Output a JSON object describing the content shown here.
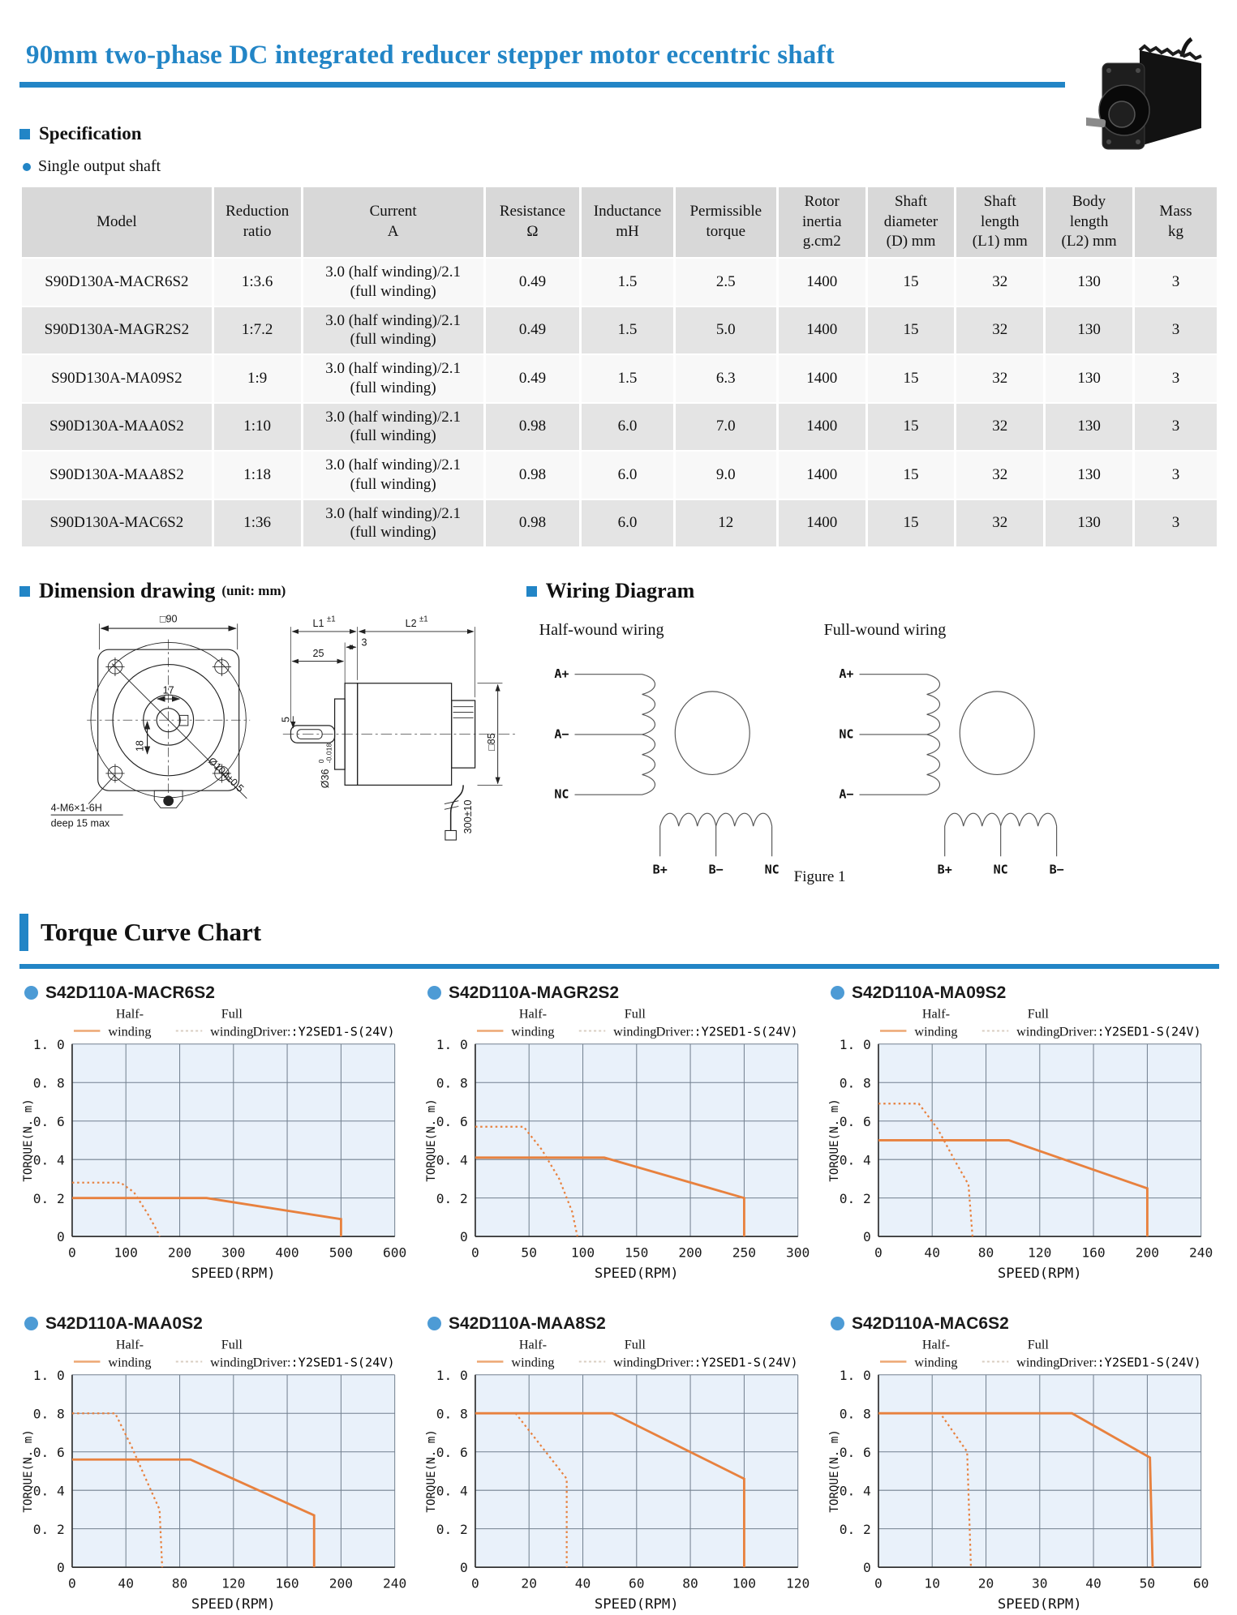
{
  "colors": {
    "accent_blue": "#2285c6",
    "curve_orange": "#e8813e",
    "chart_bg": "#e9f1fa",
    "grid": "#72808f"
  },
  "header": {
    "title": "90mm two-phase DC integrated reducer stepper motor eccentric shaft"
  },
  "spec": {
    "heading": "Specification",
    "subheading": "Single output shaft",
    "table": {
      "headers": [
        "Model",
        "Reduction\nratio",
        "Current\nA",
        "Resistance\nΩ",
        "Inductance\nmH",
        "Permissible\ntorque",
        "Rotor\ninertia\ng.cm2",
        "Shaft\ndiameter\n(D) mm",
        "Shaft\nlength\n(L1) mm",
        "Body\nlength\n(L2) mm",
        "Mass\nkg"
      ],
      "rows": [
        [
          "S90D130A-MACR6S2",
          "1:3.6",
          "3.0 (half winding)/2.1\n(full winding)",
          "0.49",
          "1.5",
          "2.5",
          "1400",
          "15",
          "32",
          "130",
          "3"
        ],
        [
          "S90D130A-MAGR2S2",
          "1:7.2",
          "3.0 (half winding)/2.1\n(full winding)",
          "0.49",
          "1.5",
          "5.0",
          "1400",
          "15",
          "32",
          "130",
          "3"
        ],
        [
          "S90D130A-MA09S2",
          "1:9",
          "3.0 (half winding)/2.1\n(full winding)",
          "0.49",
          "1.5",
          "6.3",
          "1400",
          "15",
          "32",
          "130",
          "3"
        ],
        [
          "S90D130A-MAA0S2",
          "1:10",
          "3.0 (half winding)/2.1\n(full winding)",
          "0.98",
          "6.0",
          "7.0",
          "1400",
          "15",
          "32",
          "130",
          "3"
        ],
        [
          "S90D130A-MAA8S2",
          "1:18",
          "3.0 (half winding)/2.1\n(full winding)",
          "0.98",
          "6.0",
          "9.0",
          "1400",
          "15",
          "32",
          "130",
          "3"
        ],
        [
          "S90D130A-MAC6S2",
          "1:36",
          "3.0 (half winding)/2.1\n(full winding)",
          "0.98",
          "6.0",
          "12",
          "1400",
          "15",
          "32",
          "130",
          "3"
        ]
      ]
    }
  },
  "dimension": {
    "heading": "Dimension drawing",
    "unit": "(unit: mm)",
    "labels": {
      "square90": "□90",
      "d17": "17",
      "d18": "18",
      "d104": "Ø104±0.5",
      "bolt_line1": "4-M6×1-6H",
      "bolt_line2": "deep 15 max",
      "l1": "L1",
      "l2": "L2",
      "pm1": "±1",
      "d3": "3",
      "d25": "25",
      "d36": "Ø36",
      "d36_tol_hi": "0",
      "d36_tol_lo": "-0.018",
      "d5": "5",
      "square85": "□85",
      "cable": "300±10"
    }
  },
  "wiring": {
    "heading": "Wiring Diagram",
    "figure": "Figure 1",
    "half": {
      "title": "Half-wound wiring",
      "left": [
        "A+",
        "A−",
        "NC"
      ],
      "bottom": [
        "B+",
        "B−",
        "NC"
      ]
    },
    "full": {
      "title": "Full-wound wiring",
      "left": [
        "A+",
        "NC",
        "A−"
      ],
      "bottom": [
        "B+",
        "NC",
        "B−"
      ]
    }
  },
  "torque_section": {
    "heading": "Torque Curve Chart"
  },
  "chart_data": [
    {
      "type": "line",
      "title": "S42D110A-MACR6S2",
      "legend_half": [
        "Half-",
        "winding"
      ],
      "legend_full": [
        "Full",
        "winding"
      ],
      "driver_label": "Driver:",
      "driver_value": ":Y2SED1-S(24V)",
      "xlabel": "SPEED(RPM)",
      "ylabel": "TORQUE(N. m)",
      "xlim": [
        0,
        600
      ],
      "ylim": [
        0,
        1.0
      ],
      "xticks": [
        0,
        100,
        200,
        300,
        400,
        500,
        600
      ],
      "xtick_labels": [
        "0",
        "100",
        "200",
        "300",
        "400",
        "500",
        "600"
      ],
      "yticks": [
        0,
        0.2,
        0.4,
        0.6,
        0.8,
        1.0
      ],
      "ytick_labels": [
        "0",
        "0. 2",
        "0. 4",
        "0. 6",
        "0. 8",
        "1. 0"
      ],
      "series": [
        {
          "name": "Half-winding",
          "style": "solid",
          "points": [
            [
              0,
              0.2
            ],
            [
              250,
              0.2
            ],
            [
              500,
              0.09
            ],
            [
              500,
              0
            ]
          ]
        },
        {
          "name": "Full winding",
          "style": "dotted",
          "points": [
            [
              0,
              0.28
            ],
            [
              90,
              0.28
            ],
            [
              115,
              0.23
            ],
            [
              140,
              0.12
            ],
            [
              158,
              0.03
            ],
            [
              163,
              0
            ]
          ]
        }
      ]
    },
    {
      "type": "line",
      "title": "S42D110A-MAGR2S2",
      "legend_half": [
        "Half-",
        "winding"
      ],
      "legend_full": [
        "Full",
        "winding"
      ],
      "driver_label": "Driver:",
      "driver_value": ":Y2SED1-S(24V)",
      "xlabel": "SPEED(RPM)",
      "ylabel": "TORQUE(N. m)",
      "xlim": [
        0,
        300
      ],
      "ylim": [
        0,
        1.0
      ],
      "xticks": [
        0,
        50,
        100,
        150,
        200,
        250,
        300
      ],
      "xtick_labels": [
        "0",
        "50",
        "100",
        "150",
        "200",
        "250",
        "300"
      ],
      "yticks": [
        0,
        0.2,
        0.4,
        0.6,
        0.8,
        1.0
      ],
      "ytick_labels": [
        "0",
        "0. 2",
        "0. 4",
        "0. 6",
        "0. 8",
        "1. 0"
      ],
      "series": [
        {
          "name": "Half-winding",
          "style": "solid",
          "points": [
            [
              0,
              0.41
            ],
            [
              120,
              0.41
            ],
            [
              250,
              0.2
            ],
            [
              250,
              0
            ]
          ]
        },
        {
          "name": "Full winding",
          "style": "dotted",
          "points": [
            [
              0,
              0.57
            ],
            [
              45,
              0.57
            ],
            [
              62,
              0.45
            ],
            [
              78,
              0.3
            ],
            [
              90,
              0.13
            ],
            [
              95,
              0
            ]
          ]
        }
      ]
    },
    {
      "type": "line",
      "title": "S42D110A-MA09S2",
      "legend_half": [
        "Half-",
        "winding"
      ],
      "legend_full": [
        "Full",
        "winding"
      ],
      "driver_label": "Driver:",
      "driver_value": ":Y2SED1-S(24V)",
      "xlabel": "SPEED(RPM)",
      "ylabel": "TORQUE(N. m)",
      "xlim": [
        0,
        240
      ],
      "ylim": [
        0,
        1.0
      ],
      "xticks": [
        0,
        40,
        80,
        120,
        160,
        200,
        240
      ],
      "xtick_labels": [
        "0",
        "40",
        "80",
        "120",
        "160",
        "200",
        "240"
      ],
      "yticks": [
        0,
        0.2,
        0.4,
        0.6,
        0.8,
        1.0
      ],
      "ytick_labels": [
        "0",
        "0. 2",
        "0. 4",
        "0. 6",
        "0. 8",
        "1. 0"
      ],
      "series": [
        {
          "name": "Half-winding",
          "style": "solid",
          "points": [
            [
              0,
              0.5
            ],
            [
              97,
              0.5
            ],
            [
              200,
              0.25
            ],
            [
              200,
              0
            ]
          ]
        },
        {
          "name": "Full winding",
          "style": "dotted",
          "points": [
            [
              0,
              0.69
            ],
            [
              30,
              0.69
            ],
            [
              44,
              0.56
            ],
            [
              58,
              0.38
            ],
            [
              67,
              0.27
            ],
            [
              70,
              0
            ]
          ]
        }
      ]
    },
    {
      "type": "line",
      "title": "S42D110A-MAA0S2",
      "legend_half": [
        "Half-",
        "winding"
      ],
      "legend_full": [
        "Full",
        "winding"
      ],
      "driver_label": "Driver:",
      "driver_value": ":Y2SED1-S(24V)",
      "xlabel": "SPEED(RPM)",
      "ylabel": "TORQUE(N. m)",
      "xlim": [
        0,
        240
      ],
      "ylim": [
        0,
        1.0
      ],
      "xticks": [
        0,
        40,
        80,
        120,
        160,
        200,
        240
      ],
      "xtick_labels": [
        "0",
        "40",
        "80",
        "120",
        "160",
        "200",
        "240"
      ],
      "yticks": [
        0,
        0.2,
        0.4,
        0.6,
        0.8,
        1.0
      ],
      "ytick_labels": [
        "0",
        "0. 2",
        "0. 4",
        "0. 6",
        "0. 8",
        "1. 0"
      ],
      "series": [
        {
          "name": "Half-winding",
          "style": "solid",
          "points": [
            [
              0,
              0.56
            ],
            [
              88,
              0.56
            ],
            [
              180,
              0.27
            ],
            [
              180,
              0
            ]
          ]
        },
        {
          "name": "Full winding",
          "style": "dotted",
          "points": [
            [
              0,
              0.8
            ],
            [
              32,
              0.8
            ],
            [
              44,
              0.63
            ],
            [
              56,
              0.44
            ],
            [
              65,
              0.3
            ],
            [
              67,
              0
            ]
          ]
        }
      ]
    },
    {
      "type": "line",
      "title": "S42D110A-MAA8S2",
      "legend_half": [
        "Half-",
        "winding"
      ],
      "legend_full": [
        "Full",
        "winding"
      ],
      "driver_label": "Driver:",
      "driver_value": ":Y2SED1-S(24V)",
      "xlabel": "SPEED(RPM)",
      "ylabel": "TORQUE(N. m)",
      "xlim": [
        0,
        120
      ],
      "ylim": [
        0,
        1.0
      ],
      "xticks": [
        0,
        20,
        40,
        60,
        80,
        100,
        120
      ],
      "xtick_labels": [
        "0",
        "20",
        "40",
        "60",
        "80",
        "100",
        "120"
      ],
      "yticks": [
        0,
        0.2,
        0.4,
        0.6,
        0.8,
        1.0
      ],
      "ytick_labels": [
        "0",
        "0. 2",
        "0. 4",
        "0. 6",
        "0. 8",
        "1. 0"
      ],
      "series": [
        {
          "name": "Half-winding",
          "style": "solid",
          "points": [
            [
              0,
              0.8
            ],
            [
              51,
              0.8
            ],
            [
              100,
              0.46
            ],
            [
              100,
              0
            ]
          ]
        },
        {
          "name": "Full winding",
          "style": "dotted",
          "points": [
            [
              0,
              0.8
            ],
            [
              15,
              0.8
            ],
            [
              34,
              0.46
            ],
            [
              34,
              0
            ]
          ]
        }
      ]
    },
    {
      "type": "line",
      "title": "S42D110A-MAC6S2",
      "legend_half": [
        "Half-",
        "winding"
      ],
      "legend_full": [
        "Full",
        "winding"
      ],
      "driver_label": "Driver:",
      "driver_value": ":Y2SED1-S(24V)",
      "xlabel": "SPEED(RPM)",
      "ylabel": "TORQUE(N. m)",
      "xlim": [
        0,
        60
      ],
      "ylim": [
        0,
        1.0
      ],
      "xticks": [
        0,
        10,
        20,
        30,
        40,
        50,
        60
      ],
      "xtick_labels": [
        "0",
        "10",
        "20",
        "30",
        "40",
        "50",
        "60"
      ],
      "yticks": [
        0,
        0.2,
        0.4,
        0.6,
        0.8,
        1.0
      ],
      "ytick_labels": [
        "0",
        "0. 2",
        "0. 4",
        "0. 6",
        "0. 8",
        "1. 0"
      ],
      "series": [
        {
          "name": "Half-winding",
          "style": "solid",
          "points": [
            [
              0,
              0.8
            ],
            [
              36,
              0.8
            ],
            [
              50.5,
              0.57
            ],
            [
              51,
              0
            ]
          ]
        },
        {
          "name": "Full winding",
          "style": "dotted",
          "points": [
            [
              0,
              0.8
            ],
            [
              11.5,
              0.8
            ],
            [
              16.5,
              0.6
            ],
            [
              17.2,
              0
            ]
          ]
        }
      ]
    }
  ]
}
